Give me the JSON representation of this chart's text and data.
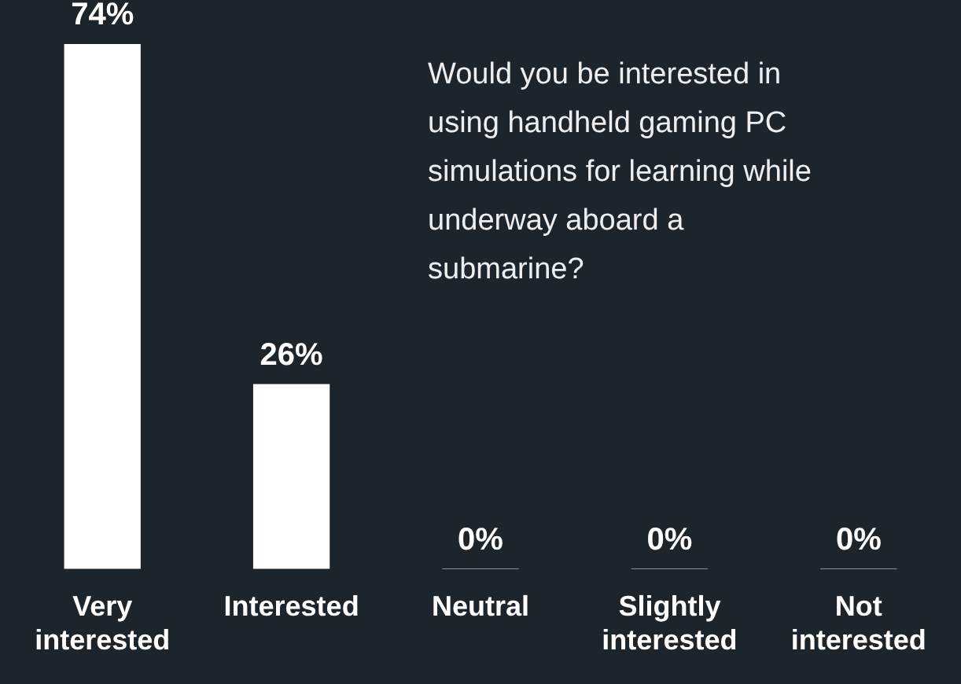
{
  "chart_data": {
    "type": "bar",
    "title": "Would you be interested in using handheld gaming PC simulations for learning while underway aboard a submarine?",
    "categories": [
      "Very interested",
      "Interested",
      "Neutral",
      "Slightly interested",
      "Not interested"
    ],
    "values": [
      74,
      26,
      0,
      0,
      0
    ],
    "value_labels": [
      "74%",
      "26%",
      "0%",
      "0%",
      "0%"
    ],
    "color": "#ffffff"
  }
}
